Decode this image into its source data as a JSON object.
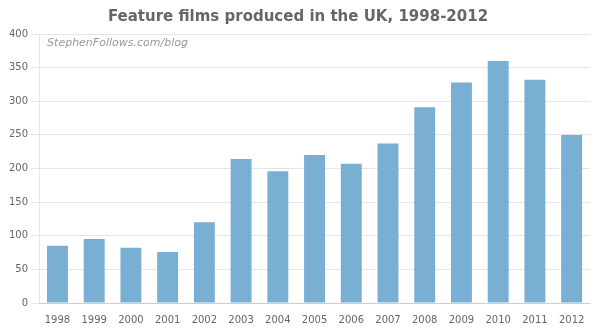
{
  "chart_data": {
    "type": "bar",
    "title": "Feature films produced in the UK, 1998-2012",
    "annotations": [
      "StephenFollows.com/blog"
    ],
    "categories": [
      "1998",
      "1999",
      "2000",
      "2001",
      "2002",
      "2003",
      "2004",
      "2005",
      "2006",
      "2007",
      "2008",
      "2009",
      "2010",
      "2011",
      "2012"
    ],
    "values": [
      85,
      95,
      82,
      76,
      120,
      214,
      196,
      220,
      207,
      237,
      291,
      328,
      360,
      332,
      250
    ],
    "color": "#7aafd4",
    "ylim": [
      0,
      400
    ],
    "yticks": [
      0,
      50,
      100,
      150,
      200,
      250,
      300,
      350,
      400
    ],
    "grid": true
  }
}
